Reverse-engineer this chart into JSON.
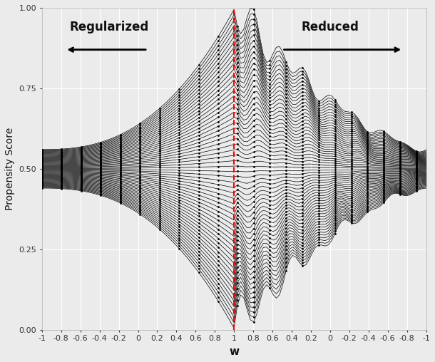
{
  "title": "",
  "xlabel": "w",
  "ylabel": "Propensity Score",
  "left_label": "Regularized",
  "right_label": "Reduced",
  "red_color": "#ff0000",
  "line_color": "#000000",
  "background_color": "#ebebeb",
  "grid_color": "#ffffff",
  "ylim": [
    0.0,
    1.0
  ],
  "yticks": [
    0.0,
    0.25,
    0.5,
    0.75,
    1.0
  ],
  "n_curves": 60,
  "seed": 42
}
